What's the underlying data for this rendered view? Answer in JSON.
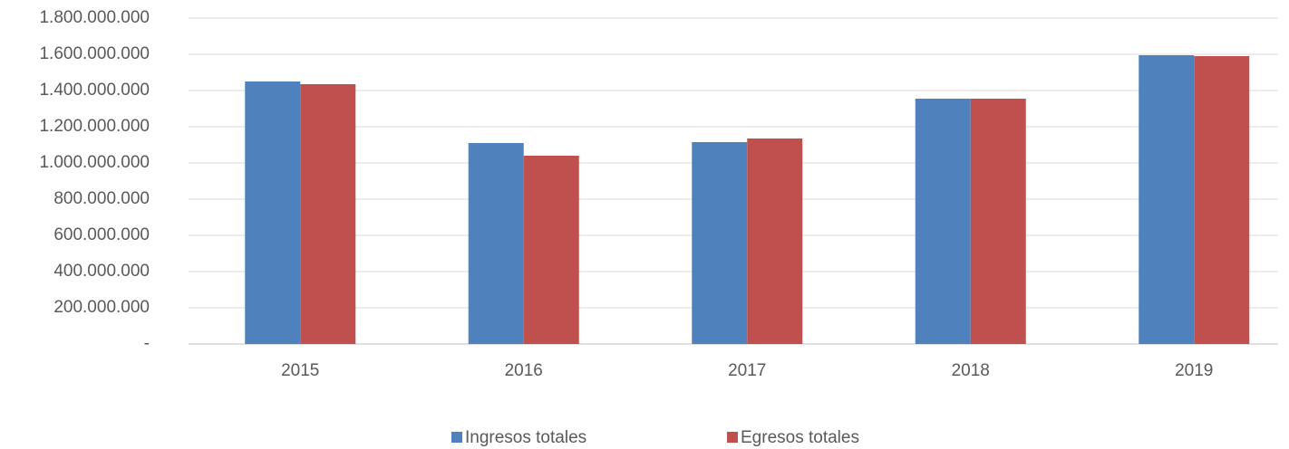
{
  "chart_data": {
    "type": "bar",
    "categories": [
      "2015",
      "2016",
      "2017",
      "2018",
      "2019"
    ],
    "series": [
      {
        "name": "Ingresos totales",
        "color": "#4f81bd",
        "values": [
          1450000000,
          1110000000,
          1115000000,
          1355000000,
          1595000000
        ]
      },
      {
        "name": "Egresos totales",
        "color": "#c0504d",
        "values": [
          1435000000,
          1040000000,
          1135000000,
          1355000000,
          1590000000
        ]
      }
    ],
    "ylim": [
      0,
      1800000000
    ],
    "yticks": [
      {
        "value": 0,
        "label": "-"
      },
      {
        "value": 200000000,
        "label": "200.000.000"
      },
      {
        "value": 400000000,
        "label": "400.000.000"
      },
      {
        "value": 600000000,
        "label": "600.000.000"
      },
      {
        "value": 800000000,
        "label": "800.000.000"
      },
      {
        "value": 1000000000,
        "label": "1.000.000.000"
      },
      {
        "value": 1200000000,
        "label": "1.200.000.000"
      },
      {
        "value": 1400000000,
        "label": "1.400.000.000"
      },
      {
        "value": 1600000000,
        "label": "1.600.000.000"
      },
      {
        "value": 1800000000,
        "label": "1.800.000.000"
      }
    ],
    "grid": true,
    "legend": "bottom"
  }
}
